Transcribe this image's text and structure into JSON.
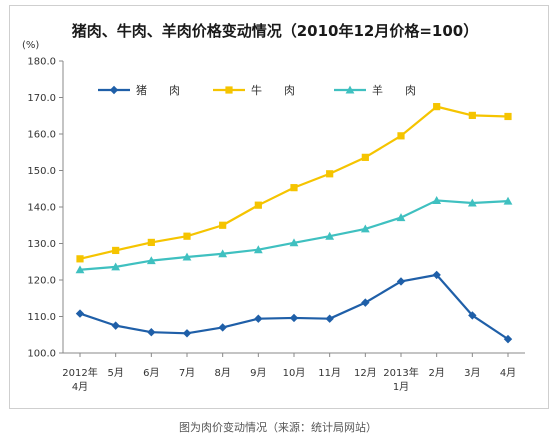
{
  "chart_data": {
    "type": "line",
    "title": "猪肉、牛肉、羊肉价格变动情况（2010年12月价格=100）",
    "unit_label": "(%)",
    "caption": "图为肉价变动情况（来源：统计局网站）",
    "categories": [
      [
        "2012年",
        "4月"
      ],
      [
        "5月"
      ],
      [
        "6月"
      ],
      [
        "7月"
      ],
      [
        "8月"
      ],
      [
        "9月"
      ],
      [
        "10月"
      ],
      [
        "11月"
      ],
      [
        "12月"
      ],
      [
        "2013年",
        "1月"
      ],
      [
        "2月"
      ],
      [
        "3月"
      ],
      [
        "4月"
      ]
    ],
    "ylim": [
      100,
      180
    ],
    "yticks": [
      "100.0",
      "110.0",
      "120.0",
      "130.0",
      "140.0",
      "150.0",
      "160.0",
      "170.0",
      "180.0"
    ],
    "grid": false,
    "legend_position": "top",
    "series": [
      {
        "name": "猪　　肉",
        "color": "#1f5fa8",
        "marker": "diamond",
        "values": [
          110.8,
          107.5,
          105.7,
          105.4,
          107.0,
          109.4,
          109.6,
          109.4,
          113.8,
          119.6,
          121.4,
          110.3,
          103.8
        ]
      },
      {
        "name": "牛　　肉",
        "color": "#f5c400",
        "marker": "square",
        "values": [
          125.8,
          128.1,
          130.3,
          132.0,
          135.0,
          140.5,
          145.3,
          149.1,
          153.6,
          159.5,
          167.5,
          165.1,
          164.8
        ]
      },
      {
        "name": "羊　　肉",
        "color": "#3fc0c0",
        "marker": "triangle",
        "values": [
          122.8,
          123.6,
          125.3,
          126.3,
          127.2,
          128.3,
          130.2,
          132.0,
          134.0,
          137.1,
          141.8,
          141.1,
          141.6
        ]
      }
    ]
  }
}
